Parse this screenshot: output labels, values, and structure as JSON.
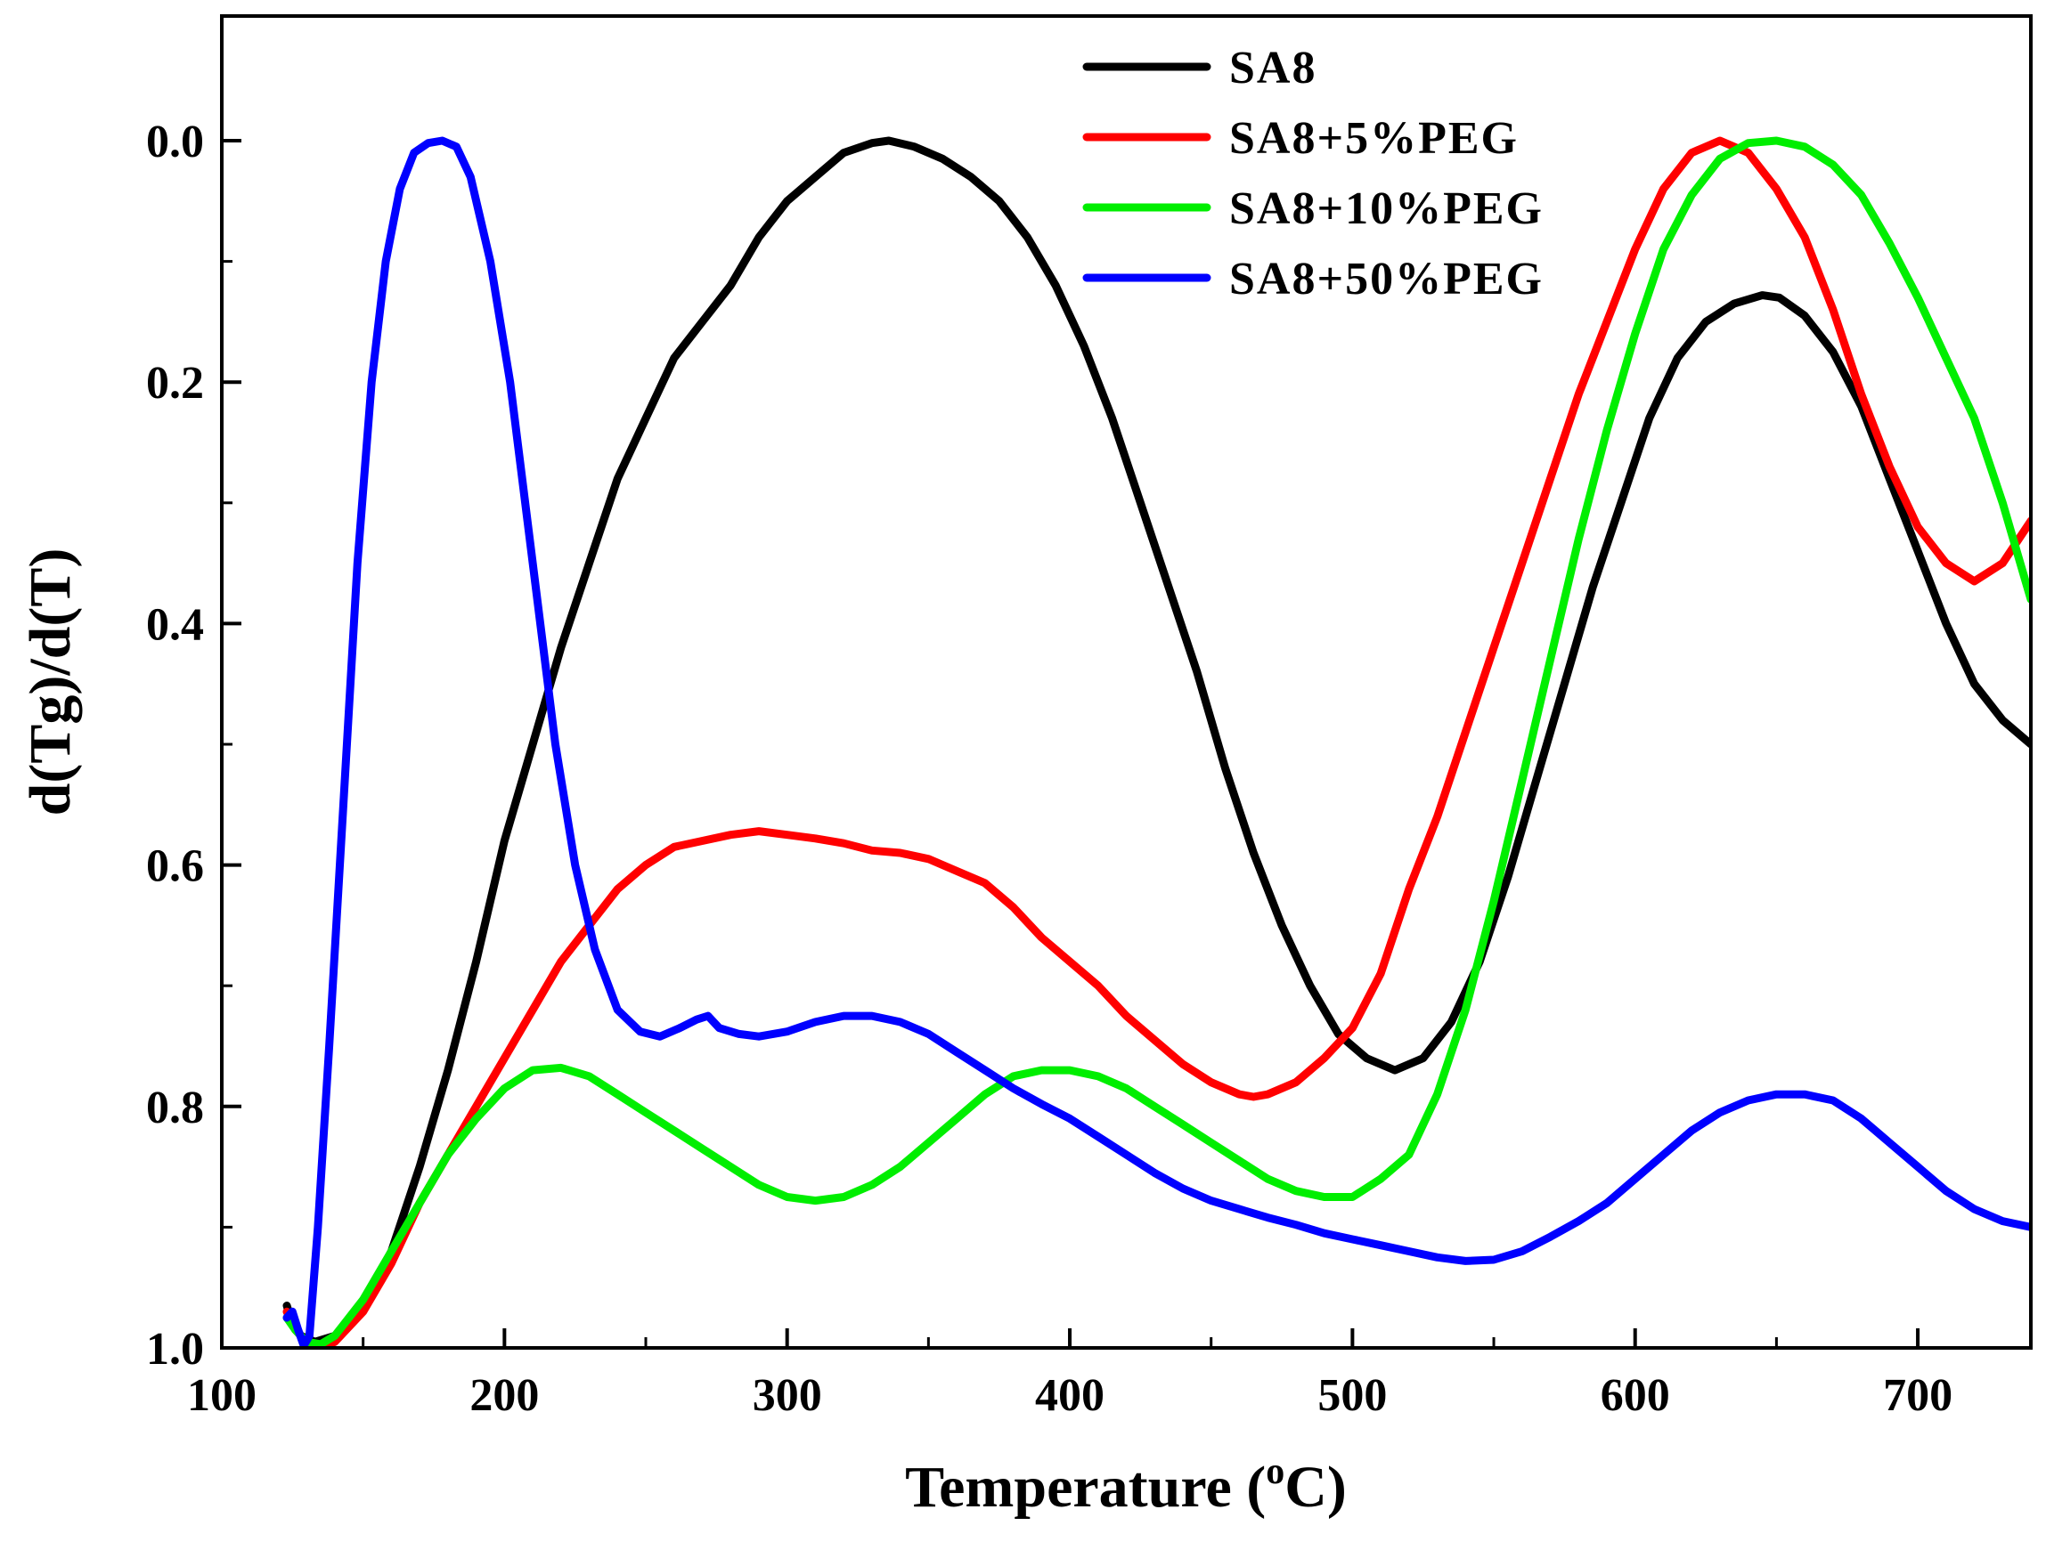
{
  "chart_data": {
    "type": "line",
    "title": "",
    "xlabel": "Temperature (",
    "xlabel_sup": "o",
    "xlabel_end": "C)",
    "ylabel": "d(Tg)/d(T)",
    "xlim": [
      100,
      740
    ],
    "ylim": [
      1.0,
      -0.1
    ],
    "y_inverted": true,
    "grid": false,
    "legend_position": "top-center",
    "x_ticks": [
      100,
      200,
      300,
      400,
      500,
      600,
      700
    ],
    "x_tick_labels": [
      "100",
      "200",
      "300",
      "400",
      "500",
      "600",
      "700"
    ],
    "y_ticks": [
      0.0,
      0.2,
      0.4,
      0.6,
      0.8,
      1.0
    ],
    "y_tick_labels": [
      "0.0",
      "0.2",
      "0.4",
      "0.6",
      "0.8",
      "1.0"
    ],
    "series": [
      {
        "name": "SA8",
        "color": "#000000",
        "points": [
          [
            123,
            0.965
          ],
          [
            125,
            0.98
          ],
          [
            128,
            0.99
          ],
          [
            133,
            0.995
          ],
          [
            140,
            0.99
          ],
          [
            150,
            0.965
          ],
          [
            160,
            0.92
          ],
          [
            170,
            0.85
          ],
          [
            180,
            0.77
          ],
          [
            190,
            0.68
          ],
          [
            200,
            0.58
          ],
          [
            210,
            0.5
          ],
          [
            220,
            0.42
          ],
          [
            230,
            0.35
          ],
          [
            240,
            0.28
          ],
          [
            250,
            0.23
          ],
          [
            260,
            0.18
          ],
          [
            270,
            0.15
          ],
          [
            280,
            0.12
          ],
          [
            290,
            0.08
          ],
          [
            300,
            0.05
          ],
          [
            310,
            0.03
          ],
          [
            320,
            0.01
          ],
          [
            330,
            0.002
          ],
          [
            336,
            0.0
          ],
          [
            345,
            0.005
          ],
          [
            355,
            0.015
          ],
          [
            365,
            0.03
          ],
          [
            375,
            0.05
          ],
          [
            385,
            0.08
          ],
          [
            395,
            0.12
          ],
          [
            405,
            0.17
          ],
          [
            415,
            0.23
          ],
          [
            425,
            0.3
          ],
          [
            435,
            0.37
          ],
          [
            445,
            0.44
          ],
          [
            455,
            0.52
          ],
          [
            465,
            0.59
          ],
          [
            475,
            0.65
          ],
          [
            485,
            0.7
          ],
          [
            495,
            0.74
          ],
          [
            505,
            0.76
          ],
          [
            515,
            0.77
          ],
          [
            525,
            0.76
          ],
          [
            535,
            0.73
          ],
          [
            545,
            0.68
          ],
          [
            555,
            0.61
          ],
          [
            565,
            0.53
          ],
          [
            575,
            0.45
          ],
          [
            585,
            0.37
          ],
          [
            595,
            0.3
          ],
          [
            605,
            0.23
          ],
          [
            615,
            0.18
          ],
          [
            625,
            0.15
          ],
          [
            635,
            0.135
          ],
          [
            645,
            0.128
          ],
          [
            651,
            0.13
          ],
          [
            660,
            0.145
          ],
          [
            670,
            0.175
          ],
          [
            680,
            0.22
          ],
          [
            690,
            0.28
          ],
          [
            700,
            0.34
          ],
          [
            710,
            0.4
          ],
          [
            720,
            0.45
          ],
          [
            730,
            0.48
          ],
          [
            740,
            0.5
          ]
        ]
      },
      {
        "name": "SA8+5%PEG",
        "color": "#ff0000",
        "points": [
          [
            123,
            0.97
          ],
          [
            126,
            0.985
          ],
          [
            130,
            0.995
          ],
          [
            135,
            1.0
          ],
          [
            140,
            0.995
          ],
          [
            150,
            0.97
          ],
          [
            160,
            0.93
          ],
          [
            170,
            0.88
          ],
          [
            180,
            0.84
          ],
          [
            190,
            0.8
          ],
          [
            200,
            0.76
          ],
          [
            210,
            0.72
          ],
          [
            220,
            0.68
          ],
          [
            230,
            0.65
          ],
          [
            240,
            0.62
          ],
          [
            250,
            0.6
          ],
          [
            260,
            0.585
          ],
          [
            270,
            0.58
          ],
          [
            280,
            0.575
          ],
          [
            290,
            0.572
          ],
          [
            300,
            0.575
          ],
          [
            310,
            0.578
          ],
          [
            320,
            0.582
          ],
          [
            330,
            0.588
          ],
          [
            340,
            0.59
          ],
          [
            350,
            0.595
          ],
          [
            360,
            0.605
          ],
          [
            370,
            0.615
          ],
          [
            380,
            0.635
          ],
          [
            390,
            0.66
          ],
          [
            400,
            0.68
          ],
          [
            410,
            0.7
          ],
          [
            420,
            0.725
          ],
          [
            430,
            0.745
          ],
          [
            440,
            0.765
          ],
          [
            450,
            0.78
          ],
          [
            460,
            0.79
          ],
          [
            465,
            0.792
          ],
          [
            470,
            0.79
          ],
          [
            480,
            0.78
          ],
          [
            490,
            0.76
          ],
          [
            500,
            0.735
          ],
          [
            510,
            0.69
          ],
          [
            520,
            0.62
          ],
          [
            530,
            0.56
          ],
          [
            540,
            0.49
          ],
          [
            550,
            0.42
          ],
          [
            560,
            0.35
          ],
          [
            570,
            0.28
          ],
          [
            580,
            0.21
          ],
          [
            590,
            0.15
          ],
          [
            600,
            0.09
          ],
          [
            610,
            0.04
          ],
          [
            620,
            0.01
          ],
          [
            630,
            0.0
          ],
          [
            640,
            0.01
          ],
          [
            650,
            0.04
          ],
          [
            660,
            0.08
          ],
          [
            670,
            0.14
          ],
          [
            680,
            0.21
          ],
          [
            690,
            0.27
          ],
          [
            700,
            0.32
          ],
          [
            710,
            0.35
          ],
          [
            720,
            0.365
          ],
          [
            730,
            0.35
          ],
          [
            740,
            0.315
          ]
        ]
      },
      {
        "name": "SA8+10%PEG",
        "color": "#00ee00",
        "points": [
          [
            123,
            0.975
          ],
          [
            126,
            0.985
          ],
          [
            130,
            0.995
          ],
          [
            135,
            0.997
          ],
          [
            140,
            0.99
          ],
          [
            150,
            0.96
          ],
          [
            160,
            0.92
          ],
          [
            170,
            0.88
          ],
          [
            180,
            0.84
          ],
          [
            190,
            0.81
          ],
          [
            200,
            0.785
          ],
          [
            210,
            0.77
          ],
          [
            220,
            0.768
          ],
          [
            230,
            0.775
          ],
          [
            240,
            0.79
          ],
          [
            250,
            0.805
          ],
          [
            260,
            0.82
          ],
          [
            270,
            0.835
          ],
          [
            280,
            0.85
          ],
          [
            290,
            0.865
          ],
          [
            300,
            0.875
          ],
          [
            310,
            0.878
          ],
          [
            320,
            0.875
          ],
          [
            330,
            0.865
          ],
          [
            340,
            0.85
          ],
          [
            350,
            0.83
          ],
          [
            360,
            0.81
          ],
          [
            370,
            0.79
          ],
          [
            380,
            0.775
          ],
          [
            390,
            0.77
          ],
          [
            400,
            0.77
          ],
          [
            410,
            0.775
          ],
          [
            420,
            0.785
          ],
          [
            430,
            0.8
          ],
          [
            440,
            0.815
          ],
          [
            450,
            0.83
          ],
          [
            460,
            0.845
          ],
          [
            470,
            0.86
          ],
          [
            480,
            0.87
          ],
          [
            490,
            0.875
          ],
          [
            500,
            0.875
          ],
          [
            510,
            0.86
          ],
          [
            520,
            0.84
          ],
          [
            530,
            0.79
          ],
          [
            540,
            0.72
          ],
          [
            550,
            0.63
          ],
          [
            560,
            0.53
          ],
          [
            570,
            0.43
          ],
          [
            580,
            0.33
          ],
          [
            590,
            0.24
          ],
          [
            600,
            0.16
          ],
          [
            610,
            0.09
          ],
          [
            620,
            0.045
          ],
          [
            630,
            0.015
          ],
          [
            640,
            0.002
          ],
          [
            650,
            0.0
          ],
          [
            660,
            0.005
          ],
          [
            670,
            0.02
          ],
          [
            680,
            0.045
          ],
          [
            690,
            0.085
          ],
          [
            700,
            0.13
          ],
          [
            710,
            0.18
          ],
          [
            720,
            0.23
          ],
          [
            730,
            0.3
          ],
          [
            740,
            0.38
          ]
        ]
      },
      {
        "name": "SA8+50%PEG",
        "color": "#0000ff",
        "points": [
          [
            123,
            0.975
          ],
          [
            125,
            0.97
          ],
          [
            127,
            0.985
          ],
          [
            129,
            0.998
          ],
          [
            131,
            0.99
          ],
          [
            134,
            0.9
          ],
          [
            138,
            0.75
          ],
          [
            143,
            0.55
          ],
          [
            148,
            0.35
          ],
          [
            153,
            0.2
          ],
          [
            158,
            0.1
          ],
          [
            163,
            0.04
          ],
          [
            168,
            0.01
          ],
          [
            173,
            0.002
          ],
          [
            178,
            0.0
          ],
          [
            183,
            0.005
          ],
          [
            188,
            0.03
          ],
          [
            195,
            0.1
          ],
          [
            202,
            0.2
          ],
          [
            210,
            0.35
          ],
          [
            218,
            0.5
          ],
          [
            225,
            0.6
          ],
          [
            232,
            0.67
          ],
          [
            240,
            0.72
          ],
          [
            248,
            0.738
          ],
          [
            255,
            0.742
          ],
          [
            262,
            0.735
          ],
          [
            268,
            0.728
          ],
          [
            272,
            0.725
          ],
          [
            276,
            0.735
          ],
          [
            283,
            0.74
          ],
          [
            290,
            0.742
          ],
          [
            300,
            0.738
          ],
          [
            310,
            0.73
          ],
          [
            320,
            0.725
          ],
          [
            330,
            0.725
          ],
          [
            340,
            0.73
          ],
          [
            350,
            0.74
          ],
          [
            360,
            0.755
          ],
          [
            370,
            0.77
          ],
          [
            380,
            0.785
          ],
          [
            390,
            0.798
          ],
          [
            400,
            0.81
          ],
          [
            410,
            0.825
          ],
          [
            420,
            0.84
          ],
          [
            430,
            0.855
          ],
          [
            440,
            0.868
          ],
          [
            450,
            0.878
          ],
          [
            460,
            0.885
          ],
          [
            470,
            0.892
          ],
          [
            480,
            0.898
          ],
          [
            490,
            0.905
          ],
          [
            500,
            0.91
          ],
          [
            510,
            0.915
          ],
          [
            520,
            0.92
          ],
          [
            530,
            0.925
          ],
          [
            540,
            0.928
          ],
          [
            550,
            0.927
          ],
          [
            560,
            0.92
          ],
          [
            570,
            0.908
          ],
          [
            580,
            0.895
          ],
          [
            590,
            0.88
          ],
          [
            600,
            0.86
          ],
          [
            610,
            0.84
          ],
          [
            620,
            0.82
          ],
          [
            630,
            0.805
          ],
          [
            640,
            0.795
          ],
          [
            650,
            0.79
          ],
          [
            660,
            0.79
          ],
          [
            670,
            0.795
          ],
          [
            680,
            0.81
          ],
          [
            690,
            0.83
          ],
          [
            700,
            0.85
          ],
          [
            710,
            0.87
          ],
          [
            720,
            0.885
          ],
          [
            730,
            0.895
          ],
          [
            740,
            0.9
          ]
        ]
      }
    ]
  }
}
